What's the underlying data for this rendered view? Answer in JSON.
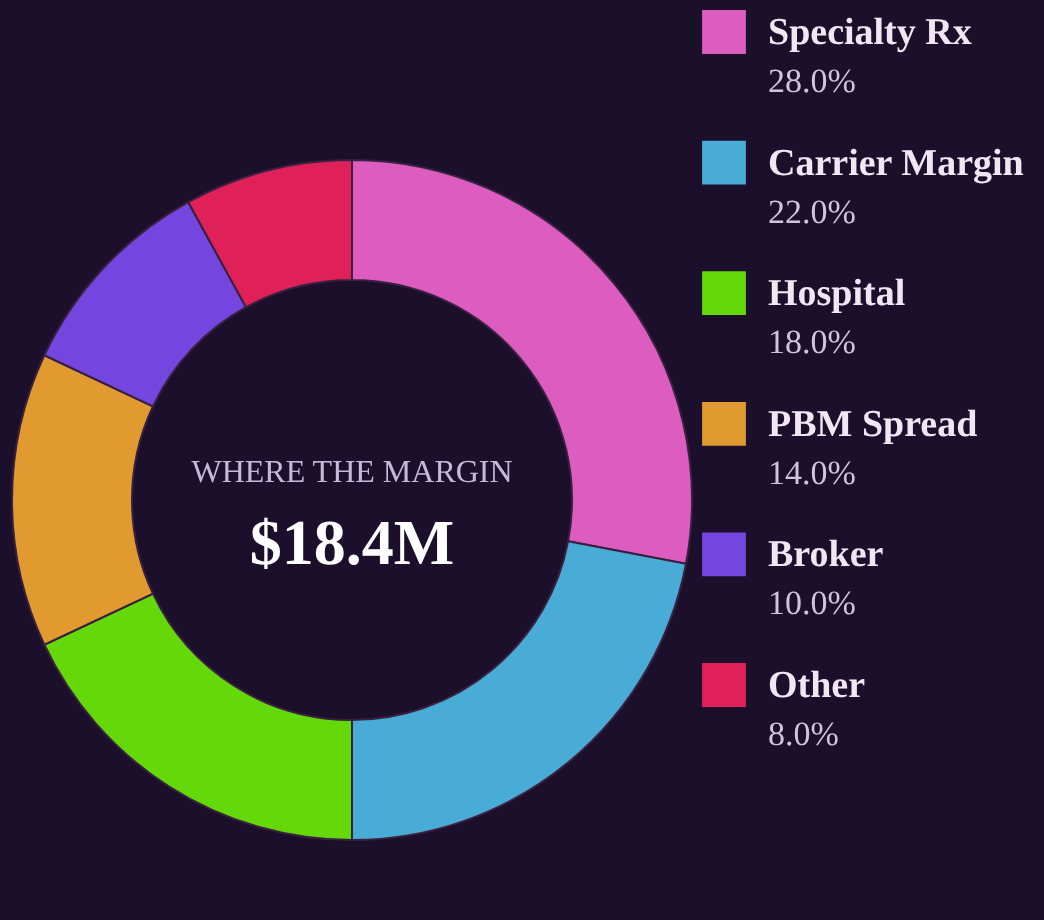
{
  "chart_data": {
    "type": "donut",
    "categories": [
      "Specialty Rx",
      "Carrier Margin",
      "Hospital",
      "PBM Spread",
      "Broker",
      "Other"
    ],
    "values": [
      28.0,
      22.0,
      18.0,
      14.0,
      10.0,
      8.0
    ],
    "colors": [
      "#dc5cc0",
      "#48acd6",
      "#64d808",
      "#e09a30",
      "#7545e0",
      "#e02058"
    ],
    "value_labels": [
      "28.0%",
      "22.0%",
      "18.0%",
      "14.0%",
      "10.0%",
      "8.0%"
    ],
    "annotations": [
      "WHERE THE MARGIN",
      "$18.4M"
    ],
    "legend": "top right"
  }
}
